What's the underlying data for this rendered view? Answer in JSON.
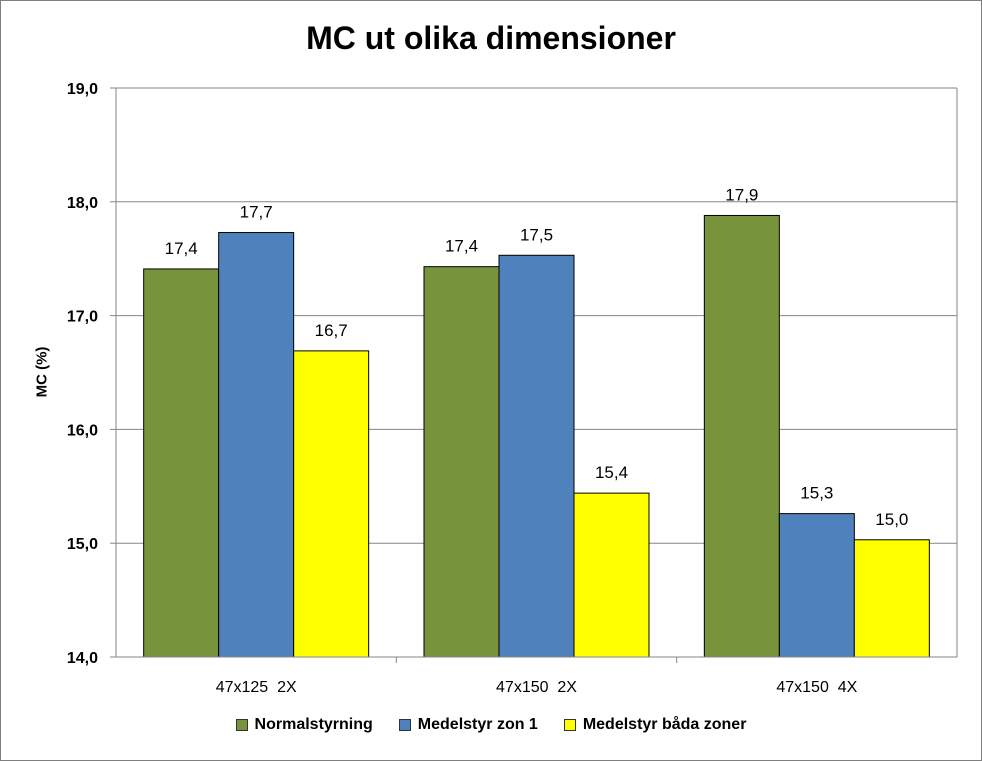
{
  "chart_data": {
    "type": "bar",
    "title": "MC ut olika dimensioner",
    "xlabel": "",
    "ylabel": "MC (%)",
    "ylim": [
      14.0,
      19.0
    ],
    "yticks": [
      "14,0",
      "15,0",
      "16,0",
      "17,0",
      "18,0",
      "19,0"
    ],
    "grid": true,
    "legend_position": "bottom",
    "categories": [
      "47x125  2X",
      "47x150  2X",
      "47x150  4X"
    ],
    "series": [
      {
        "name": "Normalstyrning",
        "color": "#77933C",
        "values": [
          17.41,
          17.43,
          17.88
        ],
        "labels": [
          "17,4",
          "17,4",
          "17,9"
        ]
      },
      {
        "name": "Medelstyr zon 1",
        "color": "#4F81BD",
        "values": [
          17.73,
          17.53,
          15.26
        ],
        "labels": [
          "17,7",
          "17,5",
          "15,3"
        ]
      },
      {
        "name": "Medelstyr båda zoner",
        "color": "#FFFF00",
        "values": [
          16.69,
          15.44,
          15.03
        ],
        "labels": [
          "16,7",
          "15,4",
          "15,0"
        ]
      }
    ]
  }
}
